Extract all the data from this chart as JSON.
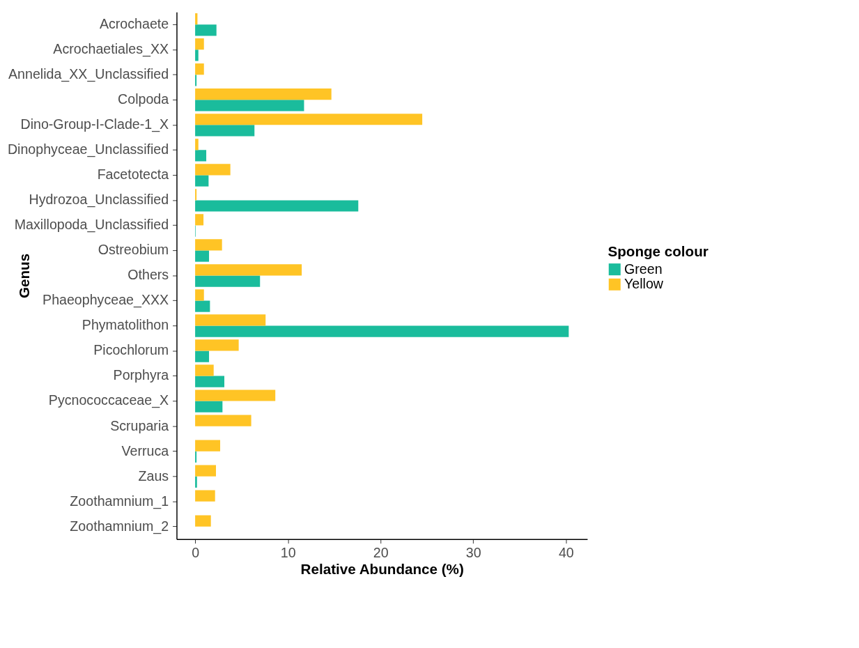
{
  "chart_data": {
    "type": "bar",
    "orientation": "horizontal",
    "xlabel": "Relative Abundance (%)",
    "ylabel": "Genus",
    "legend_title": "Sponge colour",
    "legend": "right",
    "grid": false,
    "categories": [
      "Acrochaete",
      "Acrochaetiales_XX",
      "Annelida_XX_Unclassified",
      "Colpoda",
      "Dino-Group-I-Clade-1_X",
      "Dinophyceae_Unclassified",
      "Facetotecta",
      "Hydrozoa_Unclassified",
      "Maxillopoda_Unclassified",
      "Ostreobium",
      "Others",
      "Phaeophyceae_XXX",
      "Phymatolithon",
      "Picochlorum",
      "Porphyra",
      "Pycnococcaceae_X",
      "Scruparia",
      "Verruca",
      "Zaus",
      "Zoothamnium_1",
      "Zoothamnium_2"
    ],
    "xlim": [
      -2.0,
      42.3
    ],
    "xticks": [
      0,
      10,
      20,
      30,
      40
    ],
    "series": [
      {
        "name": "Green",
        "color": "#1abc9c",
        "values": [
          2.3,
          0.35,
          0.15,
          11.75,
          6.4,
          1.2,
          1.45,
          17.6,
          0.05,
          1.5,
          7.0,
          1.6,
          40.3,
          1.5,
          3.15,
          2.95,
          null,
          0.15,
          0.2,
          null,
          null
        ]
      },
      {
        "name": "Yellow",
        "color": "#ffc425",
        "values": [
          0.25,
          0.95,
          0.95,
          14.7,
          24.5,
          0.35,
          3.8,
          0.15,
          0.9,
          2.9,
          11.5,
          0.95,
          7.6,
          4.7,
          2.0,
          8.65,
          6.05,
          2.7,
          2.25,
          2.15,
          1.7
        ]
      }
    ]
  }
}
